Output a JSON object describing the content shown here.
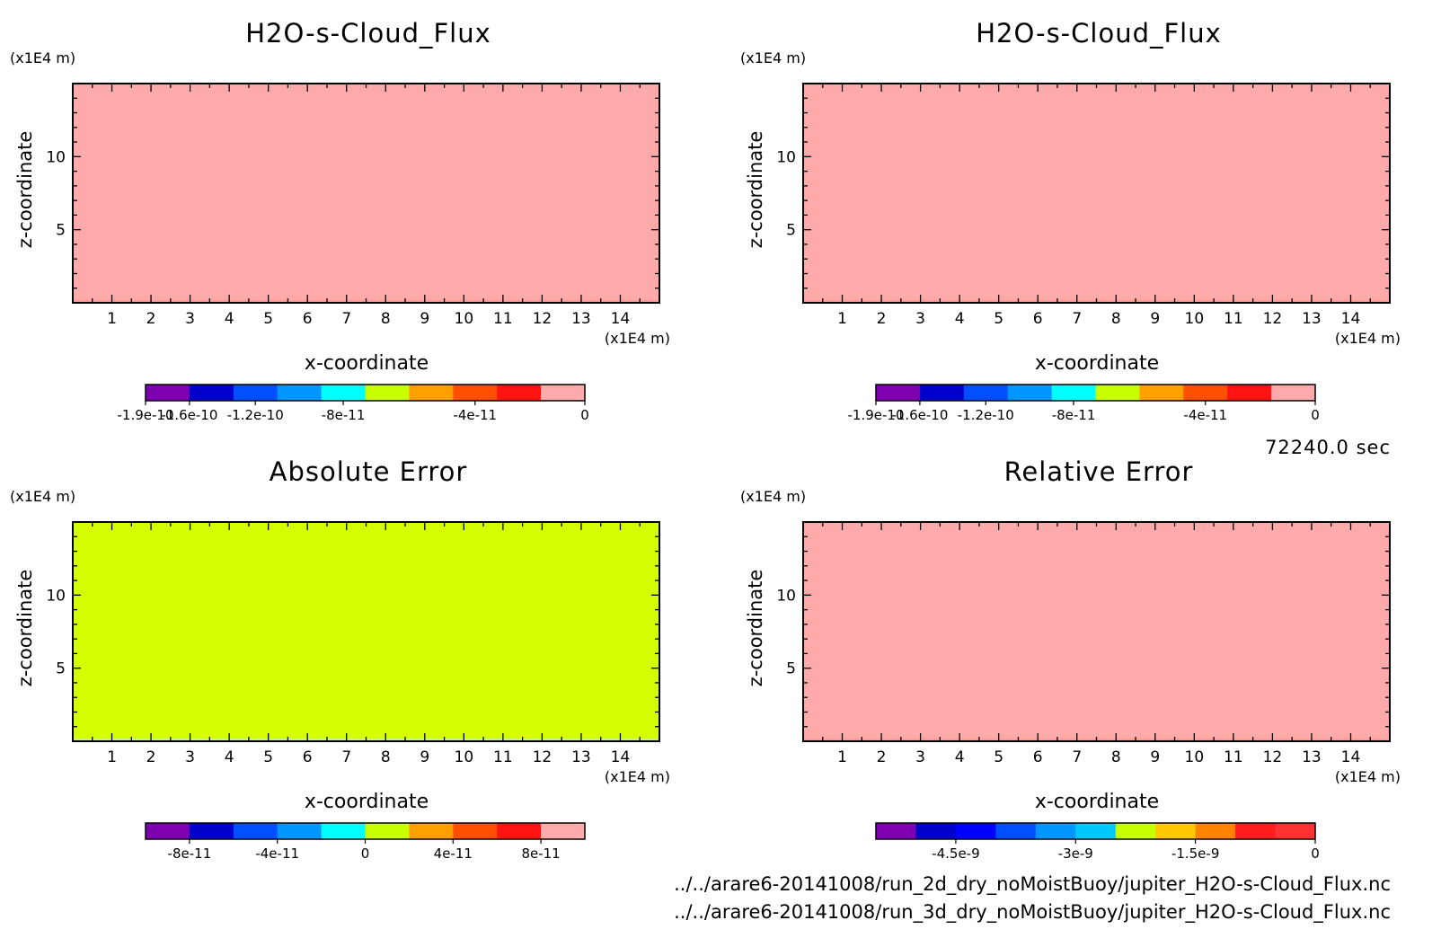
{
  "time_label": "72240.0 sec",
  "files": [
    "../../arare6-20141008/run_2d_dry_noMoistBuoy/jupiter_H2O-s-Cloud_Flux.nc",
    "../../arare6-20141008/run_3d_dry_noMoistBuoy/jupiter_H2O-s-Cloud_Flux.nc"
  ],
  "chart_data": [
    {
      "type": "heatmap",
      "title": "H2O-s-Cloud_Flux",
      "xlabel": "x-coordinate",
      "ylabel": "z-coordinate",
      "x_unit": "(x1E4 m)",
      "y_unit": "(x1E4 m)",
      "xlim": [
        0,
        15
      ],
      "ylim": [
        0,
        15
      ],
      "x_ticks": [
        "1",
        "2",
        "3",
        "4",
        "5",
        "6",
        "7",
        "8",
        "9",
        "10",
        "11",
        "12",
        "13",
        "14"
      ],
      "y_ticks": [
        "5",
        "10"
      ],
      "field_color": "#ffaaaa",
      "legend_colors": [
        "#7f00b0",
        "#0000c8",
        "#0050ff",
        "#0096ff",
        "#00ffff",
        "#c8ff00",
        "#ffa000",
        "#ff5000",
        "#ff1414",
        "#ffaaaa"
      ],
      "legend_ticks": [
        "-1.9e-10",
        "-1.6e-10",
        "-1.2e-10",
        "-8e-11",
        "-4e-11",
        "0"
      ],
      "legend_tick_pos": [
        0,
        1,
        2.5,
        4.5,
        7.5,
        10
      ]
    },
    {
      "type": "heatmap",
      "title": "H2O-s-Cloud_Flux",
      "xlabel": "x-coordinate",
      "ylabel": "z-coordinate",
      "x_unit": "(x1E4 m)",
      "y_unit": "(x1E4 m)",
      "xlim": [
        0,
        15
      ],
      "ylim": [
        0,
        15
      ],
      "x_ticks": [
        "1",
        "2",
        "3",
        "4",
        "5",
        "6",
        "7",
        "8",
        "9",
        "10",
        "11",
        "12",
        "13",
        "14"
      ],
      "y_ticks": [
        "5",
        "10"
      ],
      "field_color": "#ffaaaa",
      "legend_colors": [
        "#7f00b0",
        "#0000c8",
        "#0050ff",
        "#0096ff",
        "#00ffff",
        "#c8ff00",
        "#ffa000",
        "#ff5000",
        "#ff1414",
        "#ffaaaa"
      ],
      "legend_ticks": [
        "-1.9e-10",
        "-1.6e-10",
        "-1.2e-10",
        "-8e-11",
        "-4e-11",
        "0"
      ],
      "legend_tick_pos": [
        0,
        1,
        2.5,
        4.5,
        7.5,
        10
      ]
    },
    {
      "type": "heatmap",
      "title": "Absolute Error",
      "xlabel": "x-coordinate",
      "ylabel": "z-coordinate",
      "x_unit": "(x1E4 m)",
      "y_unit": "(x1E4 m)",
      "xlim": [
        0,
        15
      ],
      "ylim": [
        0,
        15
      ],
      "x_ticks": [
        "1",
        "2",
        "3",
        "4",
        "5",
        "6",
        "7",
        "8",
        "9",
        "10",
        "11",
        "12",
        "13",
        "14"
      ],
      "y_ticks": [
        "5",
        "10"
      ],
      "field_color": "#d4ff00",
      "legend_colors": [
        "#7f00b0",
        "#0000c8",
        "#0050ff",
        "#0096ff",
        "#00ffff",
        "#c8ff00",
        "#ffa000",
        "#ff5000",
        "#ff1414",
        "#ffaaaa"
      ],
      "legend_ticks": [
        "-8e-11",
        "-4e-11",
        "0",
        "4e-11",
        "8e-11"
      ],
      "legend_tick_pos": [
        1,
        3,
        5,
        7,
        9
      ]
    },
    {
      "type": "heatmap",
      "title": "Relative Error",
      "xlabel": "x-coordinate",
      "ylabel": "z-coordinate",
      "x_unit": "(x1E4 m)",
      "y_unit": "(x1E4 m)",
      "xlim": [
        0,
        15
      ],
      "ylim": [
        0,
        15
      ],
      "x_ticks": [
        "1",
        "2",
        "3",
        "4",
        "5",
        "6",
        "7",
        "8",
        "9",
        "10",
        "11",
        "12",
        "13",
        "14"
      ],
      "y_ticks": [
        "5",
        "10"
      ],
      "field_color": "#ffaaaa",
      "legend_colors": [
        "#7f00b0",
        "#0000c8",
        "#0000ff",
        "#0050ff",
        "#0096ff",
        "#00c8ff",
        "#c8ff00",
        "#ffc800",
        "#ff8200",
        "#ff1e1e",
        "#ff3232"
      ],
      "legend_ticks": [
        "-4.5e-9",
        "-3e-9",
        "-1.5e-9",
        "0"
      ],
      "legend_tick_pos": [
        2,
        5,
        8,
        11
      ]
    }
  ]
}
